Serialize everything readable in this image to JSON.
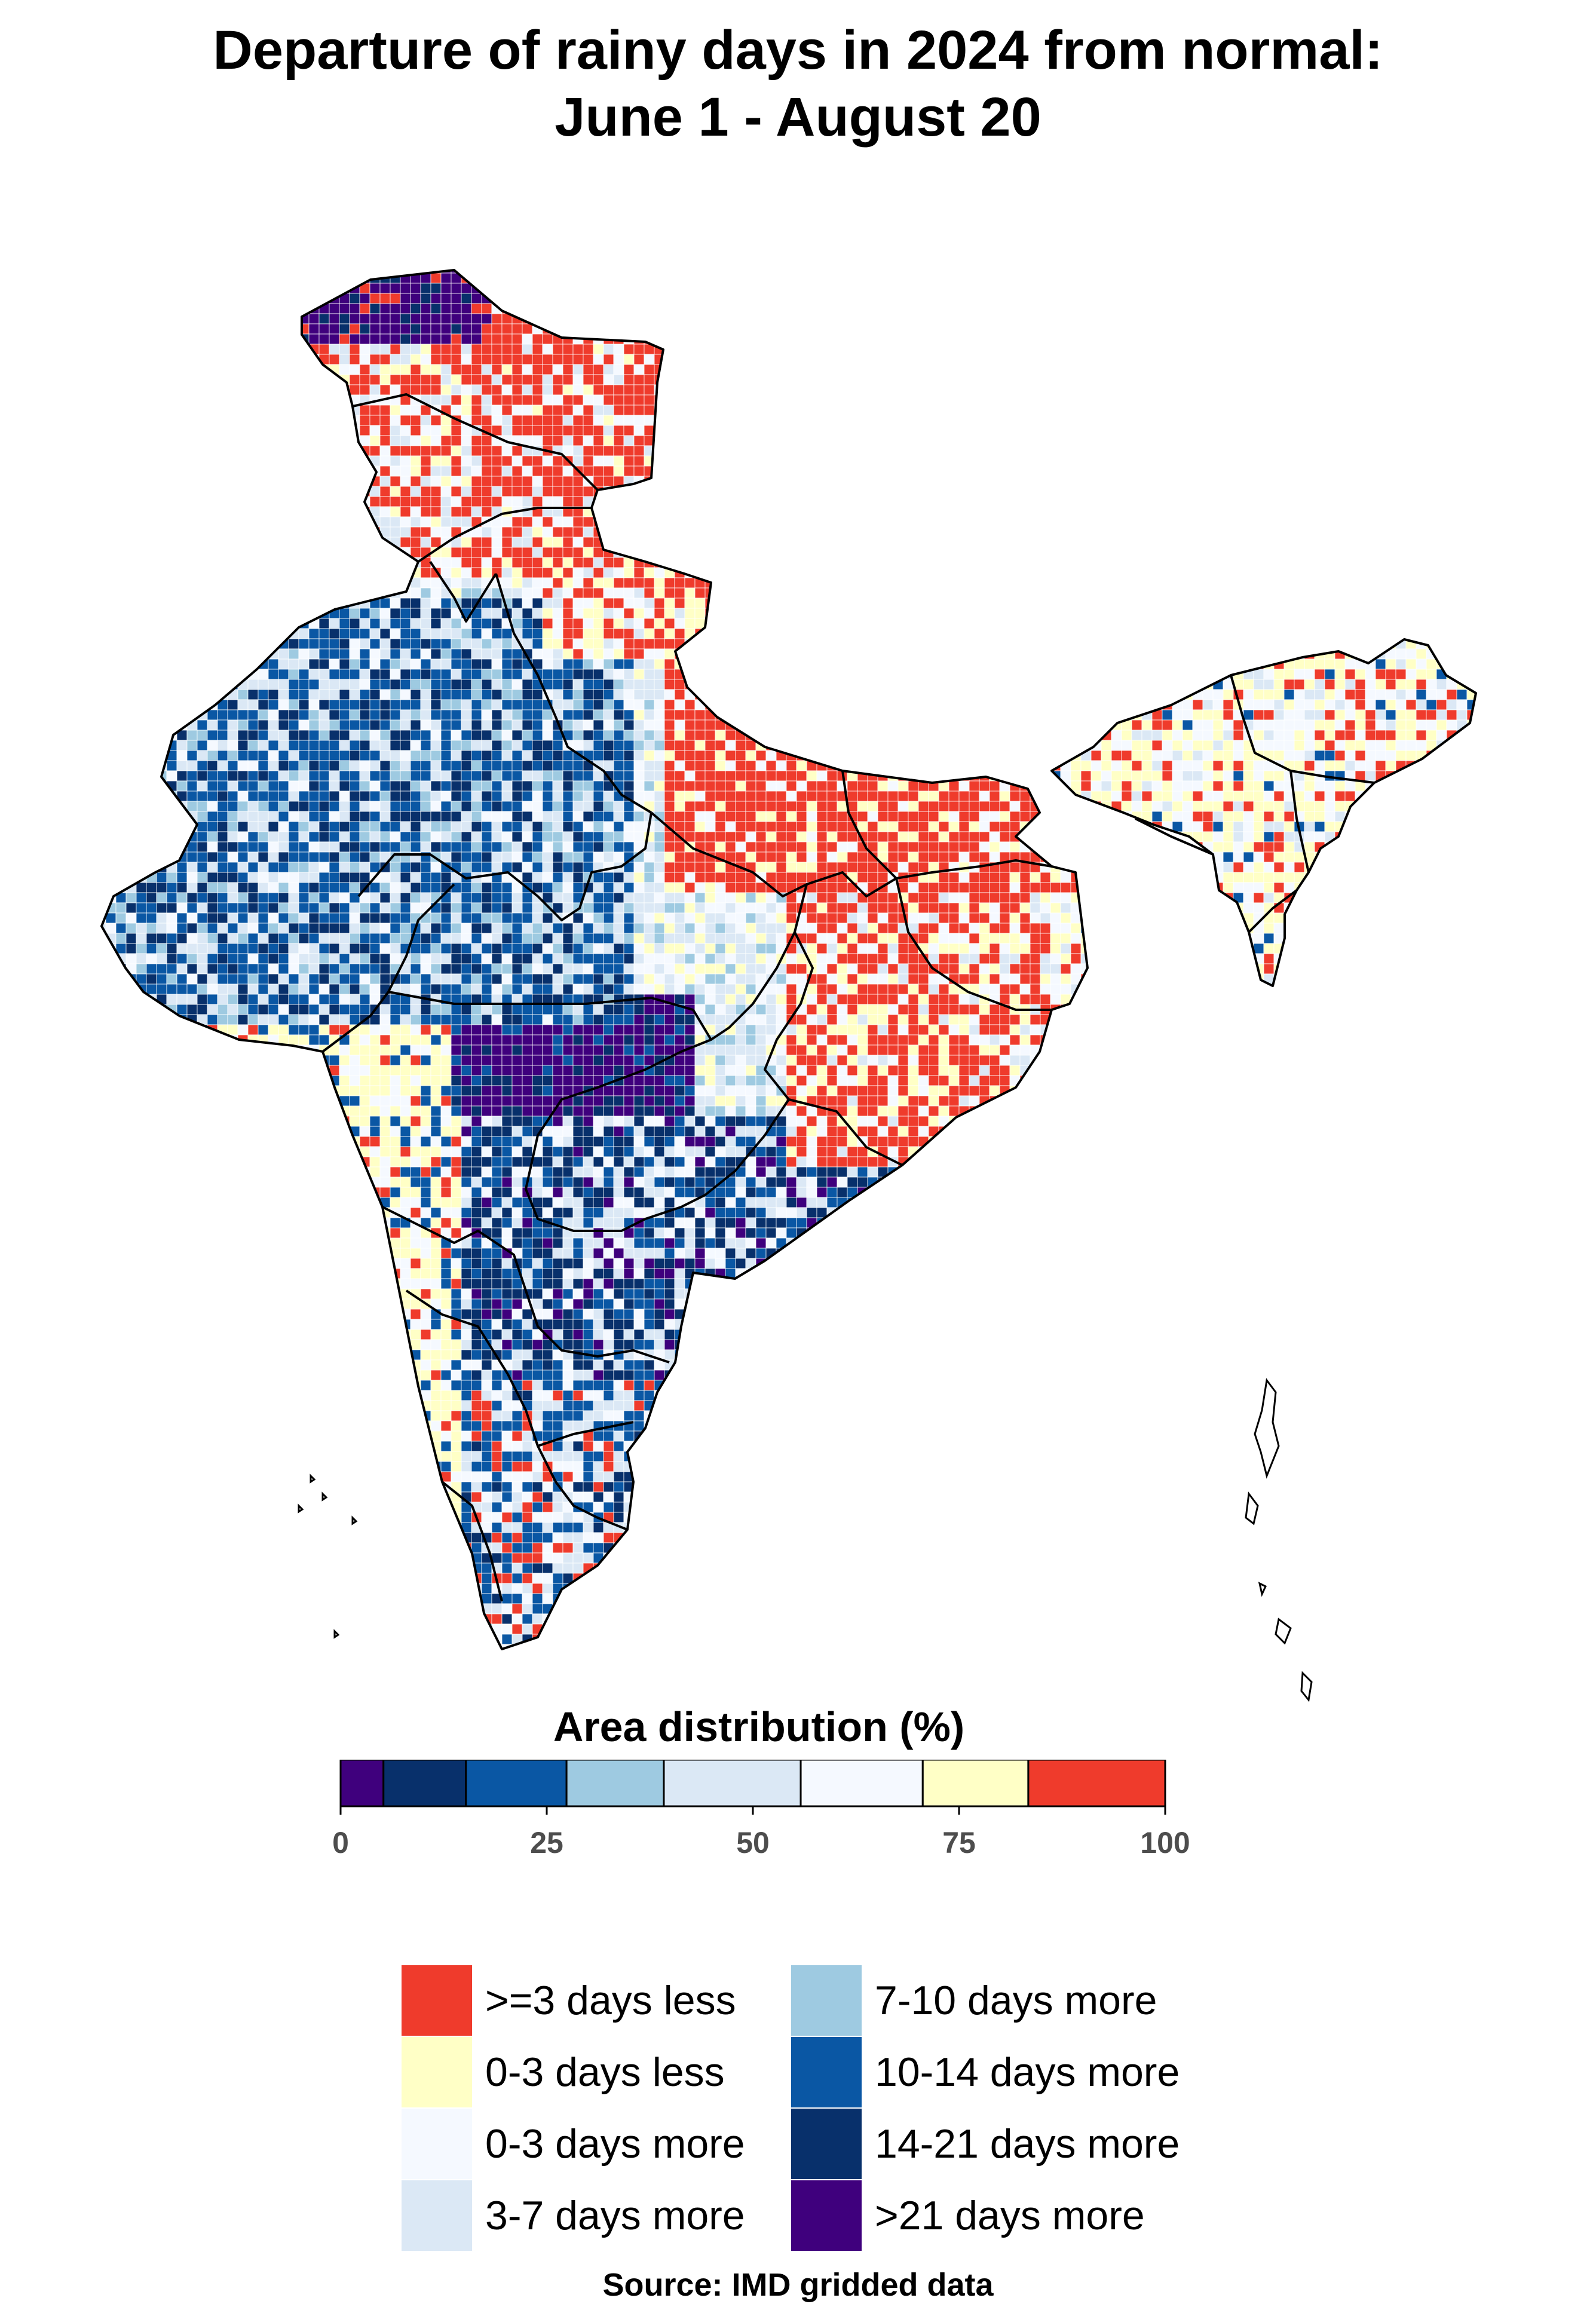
{
  "title": {
    "line1": "Departure of rainy days in 2024 from normal:",
    "line2": "June 1 - August 20"
  },
  "colors": {
    "lt3less": "#ef3b2c",
    "less0_3": "#ffffc6",
    "more0_3": "#f5f9ff",
    "more3_7": "#dbe8f5",
    "more7_10": "#9ecae1",
    "more10_14": "#0a57a4",
    "more14_21": "#08306b",
    "gt21": "#3f007d",
    "border": "#000000"
  },
  "area_distribution": {
    "title": "Area distribution (%)",
    "ticks": [
      "0",
      "25",
      "50",
      "75",
      "100"
    ],
    "segments": [
      {
        "category": ">21 days more",
        "percent": 5.2
      },
      {
        "category": "14-21 days more",
        "percent": 10.0
      },
      {
        "category": "10-14 days more",
        "percent": 12.2
      },
      {
        "category": "7-10 days more",
        "percent": 11.8
      },
      {
        "category": "3-7 days more",
        "percent": 16.6
      },
      {
        "category": "0-3 days more",
        "percent": 14.8
      },
      {
        "category": "0-3 days less",
        "percent": 12.8
      },
      {
        "category": ">=3 days less",
        "percent": 16.6
      }
    ]
  },
  "legend": {
    "items": [
      {
        "label": ">=3 days less",
        "color_key": "lt3less"
      },
      {
        "label": "0-3 days less",
        "color_key": "less0_3"
      },
      {
        "label": "0-3 days more",
        "color_key": "more0_3"
      },
      {
        "label": "3-7 days more",
        "color_key": "more3_7"
      },
      {
        "label": "7-10 days more",
        "color_key": "more7_10"
      },
      {
        "label": "10-14 days more",
        "color_key": "more10_14"
      },
      {
        "label": "14-21 days more",
        "color_key": "more14_21"
      },
      {
        "label": ">21 days more",
        "color_key": "gt21"
      }
    ]
  },
  "source": "Source: IMD gridded data"
}
